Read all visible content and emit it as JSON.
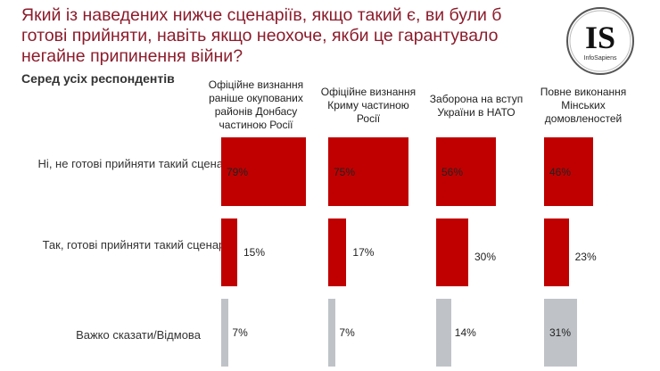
{
  "title": "Який із наведених нижче сценаріїв, якщо такий є, ви були б готові прийняти, навіть якщо неохоче, якби це гарантувало негайне припинення війни?",
  "subtitle": "Серед усіх респондентів",
  "logo": {
    "text": "IS",
    "subtext": "InfoSapiens"
  },
  "colors": {
    "title": "#8c1c2c",
    "red": "#c00000",
    "gray": "#bfc3c8"
  },
  "chart_data": {
    "type": "bar",
    "orientation": "horizontal",
    "layout": "small-multiples",
    "categories": [
      "Офіційне визнання раніше окупованих районів Донбасу частиною Росії",
      "Офіційне визнання Криму частиною Росії",
      "Заборона на вступ України в НАТО",
      "Повне виконання Мінських домовленостей"
    ],
    "series": [
      {
        "name": "Ні, не готові прийняти такий сценарій",
        "values": [
          79,
          75,
          56,
          46
        ],
        "labels": [
          "79%",
          "75%",
          "56%",
          "46%"
        ],
        "color": "#c00000"
      },
      {
        "name": "Так, готові прийняти такий сценарій",
        "values": [
          15,
          17,
          30,
          23
        ],
        "labels": [
          "15%",
          "17%",
          "30%",
          "23%"
        ],
        "color": "#c00000"
      },
      {
        "name": "Важко сказати/Відмова",
        "values": [
          7,
          7,
          14,
          31
        ],
        "labels": [
          "7%",
          "7%",
          "14%",
          "31%"
        ],
        "color": "#bfc3c8"
      }
    ],
    "unit": "%"
  }
}
